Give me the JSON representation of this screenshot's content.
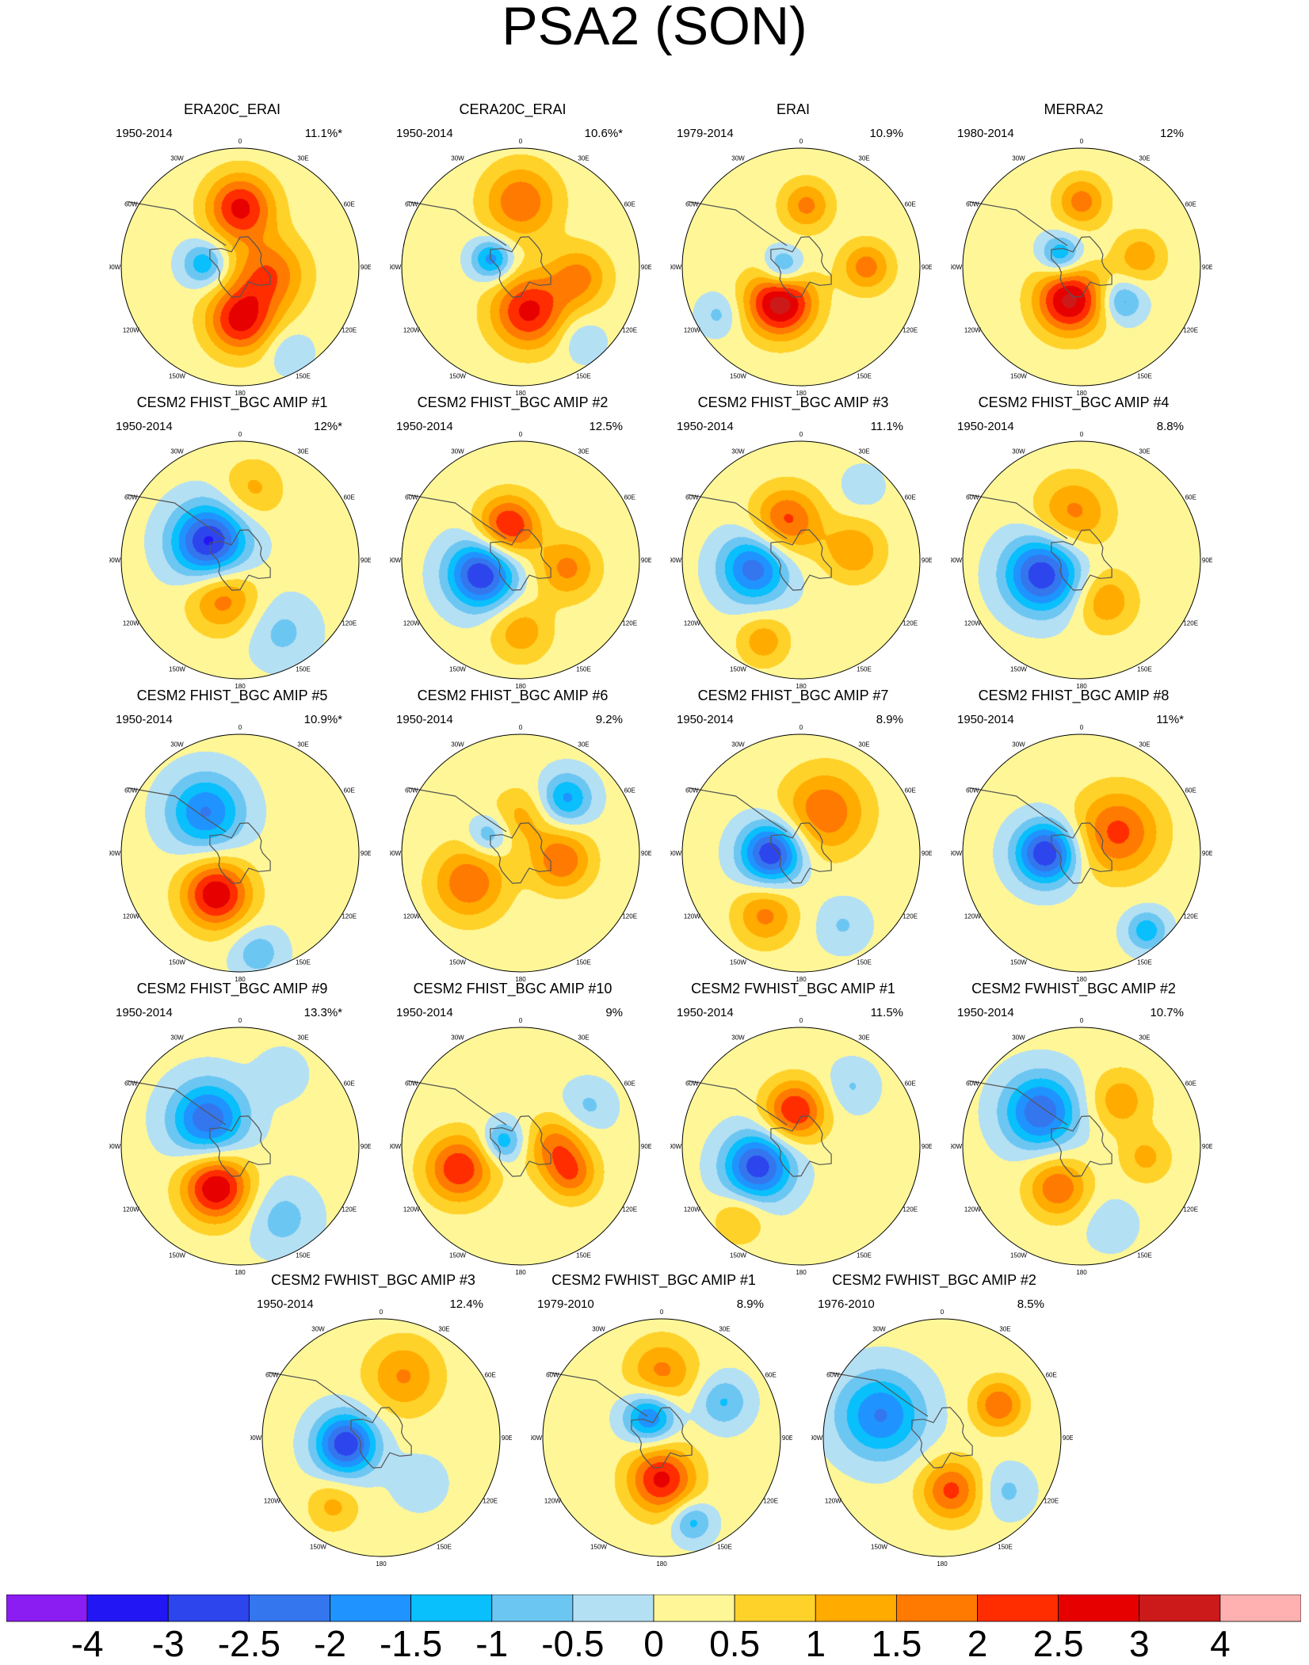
{
  "title": "PSA2 (SON)",
  "lon_labels": [
    "0",
    "30E",
    "60E",
    "90E",
    "120E",
    "150E",
    "180",
    "150W",
    "120W",
    "90W",
    "60W",
    "30W"
  ],
  "colorbar": {
    "colors": [
      "#8b1cf2",
      "#2216f5",
      "#2d45ed",
      "#3476ee",
      "#1f93ff",
      "#09bffc",
      "#6cc6f2",
      "#b4e0f4",
      "#fff797",
      "#ffd22a",
      "#ffab00",
      "#ff7a00",
      "#ff2d00",
      "#e60000",
      "#cc1a1a",
      "#ffb1b1"
    ],
    "labels": [
      "-4",
      "-3",
      "-2.5",
      "-2",
      "-1.5",
      "-1",
      "-0.5",
      "0",
      "0.5",
      "1",
      "1.5",
      "2",
      "2.5",
      "3",
      "4"
    ]
  },
  "chart_data": {
    "type": "heatmap",
    "title": "PSA2 (SON)",
    "projection": "south polar stereographic",
    "levels": [
      -4,
      -3,
      -2.5,
      -2,
      -1.5,
      -1,
      -0.5,
      0,
      0.5,
      1,
      1.5,
      2,
      2.5,
      3,
      4
    ],
    "panels": [
      {
        "title": "ERA20C_ERAI",
        "years": "1950-2014",
        "pct": "11.1%*",
        "blobs": [
          {
            "lon": 0,
            "r": 0.5,
            "v": 2.5,
            "s": 0.2
          },
          {
            "lon": 180,
            "r": 0.45,
            "v": 2.5,
            "s": 0.2
          },
          {
            "lon": 105,
            "r": 0.25,
            "v": 1.8,
            "s": 0.22
          },
          {
            "lon": -85,
            "r": 0.3,
            "v": -1.6,
            "s": 0.13
          },
          {
            "lon": 150,
            "r": 0.82,
            "v": -0.7,
            "s": 0.13
          }
        ]
      },
      {
        "title": "CERA20C_ERAI",
        "years": "1950-2014",
        "pct": "10.6%*",
        "blobs": [
          {
            "lon": 0,
            "r": 0.55,
            "v": 1.8,
            "s": 0.22
          },
          {
            "lon": 170,
            "r": 0.38,
            "v": 2.5,
            "s": 0.22
          },
          {
            "lon": 100,
            "r": 0.5,
            "v": 1.5,
            "s": 0.18
          },
          {
            "lon": -75,
            "r": 0.25,
            "v": -2.0,
            "s": 0.12
          },
          {
            "lon": 140,
            "r": 0.8,
            "v": -0.7,
            "s": 0.13
          }
        ]
      },
      {
        "title": "ERAI",
        "years": "1979-2014",
        "pct": "10.9%",
        "blobs": [
          {
            "lon": -150,
            "r": 0.35,
            "v": 3.2,
            "s": 0.2
          },
          {
            "lon": 5,
            "r": 0.52,
            "v": 1.5,
            "s": 0.15
          },
          {
            "lon": 90,
            "r": 0.55,
            "v": 1.6,
            "s": 0.15
          },
          {
            "lon": -95,
            "r": 0.15,
            "v": -1.8,
            "s": 0.12
          },
          {
            "lon": -120,
            "r": 0.8,
            "v": -0.8,
            "s": 0.12
          }
        ]
      },
      {
        "title": "MERRA2",
        "years": "1980-2014",
        "pct": "12%",
        "blobs": [
          {
            "lon": -160,
            "r": 0.3,
            "v": 3.0,
            "s": 0.2
          },
          {
            "lon": 0,
            "r": 0.55,
            "v": 1.6,
            "s": 0.15
          },
          {
            "lon": -60,
            "r": 0.2,
            "v": -1.8,
            "s": 0.12
          },
          {
            "lon": 130,
            "r": 0.45,
            "v": -1.4,
            "s": 0.12
          },
          {
            "lon": 80,
            "r": 0.5,
            "v": 1.2,
            "s": 0.15
          }
        ]
      },
      {
        "title": "CESM2 FHIST_BGC AMIP #1",
        "years": "1950-2014",
        "pct": "12%*",
        "blobs": [
          {
            "lon": -60,
            "r": 0.3,
            "v": -3.3,
            "s": 0.22
          },
          {
            "lon": -155,
            "r": 0.35,
            "v": 1.7,
            "s": 0.2
          },
          {
            "lon": 10,
            "r": 0.6,
            "v": 1.0,
            "s": 0.18
          },
          {
            "lon": 150,
            "r": 0.7,
            "v": -0.8,
            "s": 0.2
          }
        ]
      },
      {
        "title": "CESM2 FHIST_BGC AMIP #2",
        "years": "1950-2014",
        "pct": "12.5%",
        "blobs": [
          {
            "lon": -110,
            "r": 0.35,
            "v": -3.2,
            "s": 0.2
          },
          {
            "lon": -20,
            "r": 0.3,
            "v": 2.5,
            "s": 0.18
          },
          {
            "lon": 180,
            "r": 0.6,
            "v": 1.2,
            "s": 0.18
          },
          {
            "lon": 100,
            "r": 0.4,
            "v": 1.5,
            "s": 0.18
          }
        ]
      },
      {
        "title": "CESM2 FHIST_BGC AMIP #3",
        "years": "1950-2014",
        "pct": "11.1%",
        "blobs": [
          {
            "lon": -100,
            "r": 0.4,
            "v": -2.5,
            "s": 0.2
          },
          {
            "lon": -20,
            "r": 0.35,
            "v": 2.0,
            "s": 0.2
          },
          {
            "lon": -155,
            "r": 0.75,
            "v": 1.2,
            "s": 0.15
          },
          {
            "lon": 80,
            "r": 0.45,
            "v": 1.3,
            "s": 0.18
          },
          {
            "lon": 40,
            "r": 0.8,
            "v": -0.6,
            "s": 0.12
          }
        ]
      },
      {
        "title": "CESM2 FHIST_BGC AMIP #4",
        "years": "1950-2014",
        "pct": "8.8%",
        "blobs": [
          {
            "lon": -110,
            "r": 0.35,
            "v": -3.1,
            "s": 0.22
          },
          {
            "lon": -10,
            "r": 0.4,
            "v": 1.5,
            "s": 0.22
          },
          {
            "lon": 150,
            "r": 0.4,
            "v": 1.3,
            "s": 0.18
          }
        ]
      },
      {
        "title": "CESM2 FHIST_BGC AMIP #5",
        "years": "1950-2014",
        "pct": "10.9%*",
        "blobs": [
          {
            "lon": -150,
            "r": 0.4,
            "v": 2.8,
            "s": 0.2
          },
          {
            "lon": -40,
            "r": 0.45,
            "v": -2.2,
            "s": 0.22
          },
          {
            "lon": 170,
            "r": 0.85,
            "v": -1.0,
            "s": 0.15
          }
        ]
      },
      {
        "title": "CESM2 FHIST_BGC AMIP #6",
        "years": "1950-2014",
        "pct": "9.2%",
        "blobs": [
          {
            "lon": -120,
            "r": 0.5,
            "v": 1.8,
            "s": 0.22
          },
          {
            "lon": 100,
            "r": 0.35,
            "v": 1.8,
            "s": 0.18
          },
          {
            "lon": 40,
            "r": 0.6,
            "v": -1.8,
            "s": 0.15
          },
          {
            "lon": -60,
            "r": 0.3,
            "v": -1.3,
            "s": 0.12
          },
          {
            "lon": 0,
            "r": 0.3,
            "v": 1.0,
            "s": 0.18
          }
        ]
      },
      {
        "title": "CESM2 FHIST_BGC AMIP #7",
        "years": "1950-2014",
        "pct": "8.9%",
        "blobs": [
          {
            "lon": -90,
            "r": 0.25,
            "v": -3.2,
            "s": 0.18
          },
          {
            "lon": 30,
            "r": 0.4,
            "v": 1.8,
            "s": 0.25
          },
          {
            "lon": -150,
            "r": 0.6,
            "v": 1.5,
            "s": 0.18
          },
          {
            "lon": 150,
            "r": 0.7,
            "v": -0.7,
            "s": 0.15
          }
        ]
      },
      {
        "title": "CESM2 FHIST_BGC AMIP #8",
        "years": "1950-2014",
        "pct": "11%*",
        "blobs": [
          {
            "lon": -90,
            "r": 0.3,
            "v": -3.2,
            "s": 0.18
          },
          {
            "lon": 60,
            "r": 0.35,
            "v": 2.0,
            "s": 0.25
          },
          {
            "lon": 140,
            "r": 0.85,
            "v": -1.5,
            "s": 0.12
          }
        ]
      },
      {
        "title": "CESM2 FHIST_BGC AMIP #9",
        "years": "1950-2014",
        "pct": "13.3%*",
        "blobs": [
          {
            "lon": -150,
            "r": 0.4,
            "v": 2.9,
            "s": 0.2
          },
          {
            "lon": -50,
            "r": 0.35,
            "v": -2.6,
            "s": 0.22
          },
          {
            "lon": 150,
            "r": 0.7,
            "v": -0.9,
            "s": 0.2
          },
          {
            "lon": 30,
            "r": 0.7,
            "v": -0.5,
            "s": 0.15
          }
        ]
      },
      {
        "title": "CESM2 FHIST_BGC AMIP #10",
        "years": "1950-2014",
        "pct": "9%",
        "blobs": [
          {
            "lon": -110,
            "r": 0.55,
            "v": 2.3,
            "s": 0.2
          },
          {
            "lon": -75,
            "r": 0.15,
            "v": -1.6,
            "s": 0.12
          },
          {
            "lon": 90,
            "r": 0.3,
            "v": 1.6,
            "s": 0.18
          },
          {
            "lon": 120,
            "r": 0.5,
            "v": 1.5,
            "s": 0.15
          },
          {
            "lon": 60,
            "r": 0.65,
            "v": -0.8,
            "s": 0.15
          }
        ]
      },
      {
        "title": "CESM2 FWHIST_BGC AMIP #1",
        "years": "1950-2014",
        "pct": "11.5%",
        "blobs": [
          {
            "lon": -115,
            "r": 0.4,
            "v": -3.0,
            "s": 0.2
          },
          {
            "lon": -10,
            "r": 0.3,
            "v": 2.4,
            "s": 0.18
          },
          {
            "lon": -140,
            "r": 0.8,
            "v": 1.0,
            "s": 0.15
          },
          {
            "lon": 40,
            "r": 0.65,
            "v": -0.7,
            "s": 0.15
          }
        ]
      },
      {
        "title": "CESM2 FWHIST_BGC AMIP #2",
        "years": "1950-2014",
        "pct": "10.7%",
        "blobs": [
          {
            "lon": -50,
            "r": 0.45,
            "v": -2.6,
            "s": 0.22
          },
          {
            "lon": -150,
            "r": 0.4,
            "v": 1.8,
            "s": 0.18
          },
          {
            "lon": 40,
            "r": 0.5,
            "v": 1.2,
            "s": 0.18
          },
          {
            "lon": 100,
            "r": 0.55,
            "v": 1.0,
            "s": 0.15
          },
          {
            "lon": 160,
            "r": 0.7,
            "v": -0.6,
            "s": 0.15
          }
        ]
      },
      {
        "title": "CESM2 FWHIST_BGC AMIP #3",
        "years": "1950-2014",
        "pct": "12.4%",
        "blobs": [
          {
            "lon": -100,
            "r": 0.3,
            "v": -3.1,
            "s": 0.18
          },
          {
            "lon": 20,
            "r": 0.55,
            "v": 1.4,
            "s": 0.22
          },
          {
            "lon": -145,
            "r": 0.7,
            "v": 1.0,
            "s": 0.15
          },
          {
            "lon": 140,
            "r": 0.5,
            "v": -0.6,
            "s": 0.15
          }
        ]
      },
      {
        "title": "CESM2 FWHIST_BGC AMIP #1",
        "years": "1979-2010",
        "pct": "8.9%",
        "blobs": [
          {
            "lon": 180,
            "r": 0.35,
            "v": 2.5,
            "s": 0.2
          },
          {
            "lon": -30,
            "r": 0.2,
            "v": -2.3,
            "s": 0.15
          },
          {
            "lon": 0,
            "r": 0.55,
            "v": 1.5,
            "s": 0.2
          },
          {
            "lon": 60,
            "r": 0.6,
            "v": -1.2,
            "s": 0.15
          },
          {
            "lon": 160,
            "r": 0.75,
            "v": -1.4,
            "s": 0.12
          }
        ]
      },
      {
        "title": "CESM2 FWHIST_BGC AMIP #2",
        "years": "1976-2010",
        "pct": "8.5%",
        "blobs": [
          {
            "lon": -70,
            "r": 0.55,
            "v": -2.2,
            "s": 0.25
          },
          {
            "lon": 170,
            "r": 0.45,
            "v": 2.0,
            "s": 0.18
          },
          {
            "lon": 60,
            "r": 0.55,
            "v": 1.8,
            "s": 0.15
          },
          {
            "lon": 130,
            "r": 0.7,
            "v": -0.8,
            "s": 0.15
          }
        ]
      }
    ]
  }
}
